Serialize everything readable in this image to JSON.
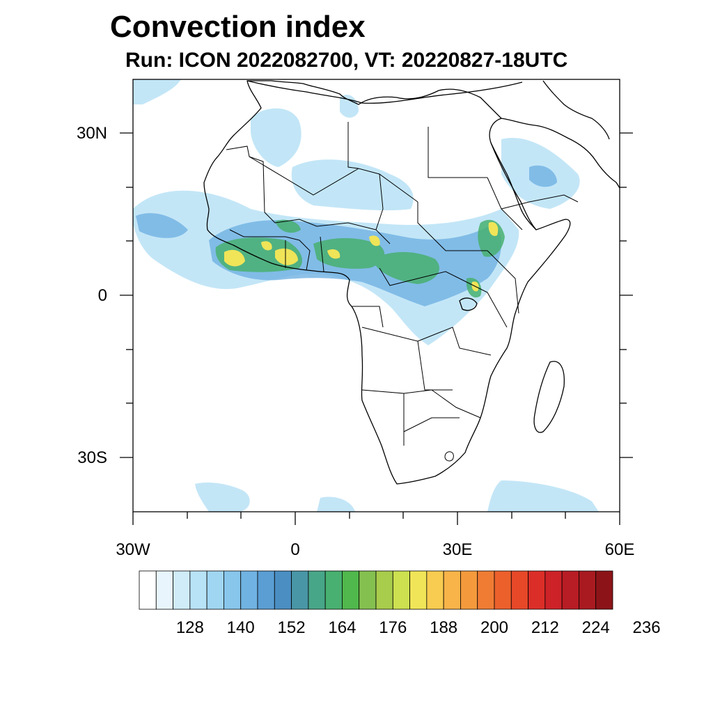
{
  "title": "Convection index",
  "subtitle": "Run: ICON 2022082700,  VT: 20220827-18UTC",
  "axes": {
    "lat_labels": [
      "30N",
      "0",
      "30S"
    ],
    "lon_labels": [
      "30W",
      "0",
      "30E",
      "60E"
    ]
  },
  "colorbar": {
    "labels": [
      "128",
      "140",
      "152",
      "164",
      "176",
      "188",
      "200",
      "212",
      "224",
      "236"
    ],
    "colors": [
      "#ffffff",
      "#e8f5fc",
      "#d0ecf8",
      "#b8e2f6",
      "#a0d6f2",
      "#88c6ec",
      "#70b2e2",
      "#5a9ed4",
      "#4a8ec2",
      "#4896a6",
      "#48a688",
      "#48b070",
      "#50b84c",
      "#84c050",
      "#a8cc4c",
      "#cce050",
      "#f0e458",
      "#f8cc50",
      "#f8b448",
      "#f49a3c",
      "#f07c34",
      "#ec602c",
      "#e64828",
      "#dc2e28",
      "#cc2228",
      "#b81c24",
      "#a81a20",
      "#8c1418"
    ]
  },
  "map": {
    "colors": {
      "light": "#b8e2f6",
      "mid": "#70b2e2",
      "teal": "#4896a6",
      "green": "#48b070",
      "lime": "#a8cc4c",
      "yellow": "#f0e458",
      "coast": "#000000"
    }
  }
}
